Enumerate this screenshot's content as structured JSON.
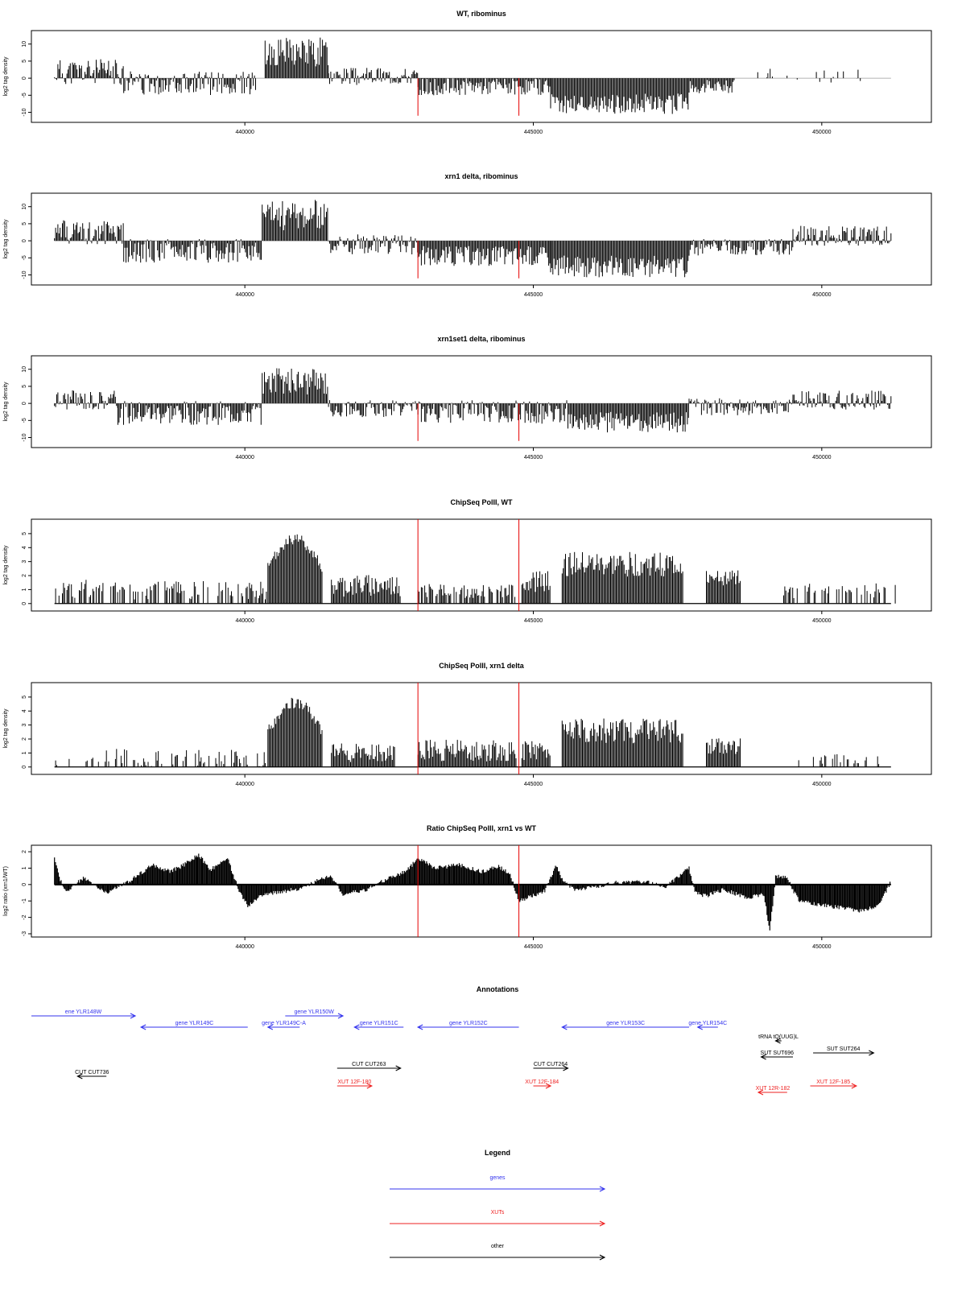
{
  "chart_data": [
    {
      "type": "bar",
      "title": "WT, ribominus",
      "ylabel": "log2 tag density",
      "xlabel": "",
      "ylim": [
        -12,
        13
      ],
      "yticks": [
        -10,
        -5,
        0,
        5,
        10
      ],
      "xlim": [
        436300,
        451900
      ],
      "xticks": [
        440000,
        445000,
        450000
      ],
      "markers": [
        443000,
        444750
      ],
      "segments": [
        {
          "start": 436700,
          "end": 437900,
          "mean": 1.8,
          "amp": 3.8,
          "seed": 11
        },
        {
          "start": 437900,
          "end": 440200,
          "mean": -1.5,
          "amp": 3.5,
          "seed": 12
        },
        {
          "start": 440350,
          "end": 441450,
          "mean": 7.5,
          "amp": 4.5,
          "seed": 13
        },
        {
          "start": 441450,
          "end": 443000,
          "mean": 0.5,
          "amp": 2.5,
          "seed": 14
        },
        {
          "start": 443000,
          "end": 445300,
          "mean": -2.5,
          "amp": 2.5,
          "seed": 15
        },
        {
          "start": 445300,
          "end": 447700,
          "mean": -7.5,
          "amp": 3.0,
          "seed": 16
        },
        {
          "start": 447700,
          "end": 448500,
          "mean": -2.5,
          "amp": 2.0,
          "seed": 17
        },
        {
          "start": 448500,
          "end": 450700,
          "mean": 0.8,
          "amp": 2.2,
          "seed": 18,
          "density": 0.15
        }
      ]
    },
    {
      "type": "bar",
      "title": "xrn1 delta, ribominus",
      "ylabel": "log2 tag density",
      "xlabel": "",
      "ylim": [
        -12,
        13
      ],
      "yticks": [
        -10,
        -5,
        0,
        5,
        10
      ],
      "xlim": [
        436300,
        451900
      ],
      "xticks": [
        440000,
        445000,
        450000
      ],
      "markers": [
        443000,
        444750
      ],
      "segments": [
        {
          "start": 436700,
          "end": 437900,
          "mean": 2.5,
          "amp": 3.5,
          "seed": 21
        },
        {
          "start": 437900,
          "end": 440300,
          "mean": -3.0,
          "amp": 3.5,
          "seed": 22
        },
        {
          "start": 440300,
          "end": 441450,
          "mean": 7.5,
          "amp": 4.5,
          "seed": 23
        },
        {
          "start": 441450,
          "end": 443000,
          "mean": -1.0,
          "amp": 3.0,
          "seed": 24
        },
        {
          "start": 443000,
          "end": 445300,
          "mean": -4.5,
          "amp": 3.0,
          "seed": 25
        },
        {
          "start": 445300,
          "end": 447700,
          "mean": -7.5,
          "amp": 3.2,
          "seed": 26
        },
        {
          "start": 447700,
          "end": 449500,
          "mean": -2.0,
          "amp": 2.5,
          "seed": 27
        },
        {
          "start": 449500,
          "end": 451200,
          "mean": 1.5,
          "amp": 3.0,
          "seed": 28
        }
      ]
    },
    {
      "type": "bar",
      "title": "xrn1set1 delta, ribominus",
      "ylabel": "log2 tag density",
      "xlabel": "",
      "ylim": [
        -12,
        13
      ],
      "yticks": [
        -10,
        -5,
        0,
        5,
        10
      ],
      "xlim": [
        436300,
        451900
      ],
      "xticks": [
        440000,
        445000,
        450000
      ],
      "markers": [
        443000,
        444750
      ],
      "segments": [
        {
          "start": 436700,
          "end": 437800,
          "mean": 1.0,
          "amp": 3.0,
          "seed": 31
        },
        {
          "start": 437800,
          "end": 440300,
          "mean": -2.8,
          "amp": 3.5,
          "seed": 32
        },
        {
          "start": 440300,
          "end": 441450,
          "mean": 6.5,
          "amp": 4.0,
          "seed": 33
        },
        {
          "start": 441450,
          "end": 443000,
          "mean": -1.5,
          "amp": 2.5,
          "seed": 34
        },
        {
          "start": 443000,
          "end": 445600,
          "mean": -2.5,
          "amp": 3.5,
          "seed": 35
        },
        {
          "start": 445600,
          "end": 447700,
          "mean": -5.5,
          "amp": 3.0,
          "seed": 36
        },
        {
          "start": 447700,
          "end": 449500,
          "mean": -1.0,
          "amp": 2.5,
          "seed": 37
        },
        {
          "start": 449500,
          "end": 451200,
          "mean": 1.0,
          "amp": 2.8,
          "seed": 38
        }
      ]
    },
    {
      "type": "bar",
      "title": "ChipSeq PolII, WT",
      "ylabel": "log2 tag density",
      "xlabel": "",
      "ylim": [
        -0.3,
        5.8
      ],
      "yticks": [
        0,
        1,
        2,
        3,
        4,
        5
      ],
      "xlim": [
        436300,
        451900
      ],
      "xticks": [
        440000,
        445000,
        450000
      ],
      "markers": [
        443000,
        444750
      ],
      "baseline": true,
      "segments": [
        {
          "start": 436700,
          "end": 440400,
          "mean": 1.0,
          "amp": 0.7,
          "seed": 41,
          "density": 0.55
        },
        {
          "start": 440400,
          "end": 441350,
          "mean": 4.6,
          "amp": 0.8,
          "seed": 42,
          "dome": true
        },
        {
          "start": 441500,
          "end": 442700,
          "mean": 1.3,
          "amp": 0.8,
          "seed": 43
        },
        {
          "start": 443000,
          "end": 444700,
          "mean": 0.9,
          "amp": 0.5,
          "seed": 44,
          "density": 0.7
        },
        {
          "start": 444800,
          "end": 445300,
          "mean": 1.6,
          "amp": 0.8,
          "seed": 45
        },
        {
          "start": 445500,
          "end": 447600,
          "mean": 2.8,
          "amp": 0.9,
          "seed": 46
        },
        {
          "start": 448000,
          "end": 448600,
          "mean": 1.8,
          "amp": 0.6,
          "seed": 47
        },
        {
          "start": 449300,
          "end": 451300,
          "mean": 0.9,
          "amp": 0.6,
          "seed": 48,
          "density": 0.35
        }
      ]
    },
    {
      "type": "bar",
      "title": "ChipSeq PolII, xrn1 delta",
      "ylabel": "log2 tag density",
      "xlabel": "",
      "ylim": [
        -0.3,
        5.8
      ],
      "yticks": [
        0,
        1,
        2,
        3,
        4,
        5
      ],
      "xlim": [
        436300,
        451900
      ],
      "xticks": [
        440000,
        445000,
        450000
      ],
      "markers": [
        443000,
        444750
      ],
      "baseline": true,
      "segments": [
        {
          "start": 436700,
          "end": 437600,
          "mean": 0.3,
          "amp": 0.4,
          "seed": 51,
          "density": 0.25
        },
        {
          "start": 437600,
          "end": 440400,
          "mean": 0.6,
          "amp": 0.7,
          "seed": 52,
          "density": 0.5
        },
        {
          "start": 440400,
          "end": 441350,
          "mean": 4.6,
          "amp": 0.8,
          "seed": 53,
          "dome": true
        },
        {
          "start": 441500,
          "end": 442600,
          "mean": 1.0,
          "amp": 0.7,
          "seed": 54
        },
        {
          "start": 443000,
          "end": 444700,
          "mean": 1.2,
          "amp": 0.8,
          "seed": 55
        },
        {
          "start": 444800,
          "end": 445300,
          "mean": 1.2,
          "amp": 0.7,
          "seed": 56
        },
        {
          "start": 445500,
          "end": 447600,
          "mean": 2.6,
          "amp": 0.9,
          "seed": 57
        },
        {
          "start": 448000,
          "end": 448600,
          "mean": 1.5,
          "amp": 0.6,
          "seed": 58
        },
        {
          "start": 449600,
          "end": 451000,
          "mean": 0.5,
          "amp": 0.5,
          "seed": 59,
          "density": 0.3
        }
      ]
    },
    {
      "type": "area",
      "title": "Ratio ChipSeq PolII, xrn1 vs WT",
      "ylabel": "log2 ratio (xrn1/WT)",
      "xlabel": "",
      "ylim": [
        -3,
        2.2
      ],
      "yticks": [
        -3,
        -2,
        -1,
        0,
        1,
        2
      ],
      "xlim": [
        436300,
        451900
      ],
      "xticks": [
        440000,
        445000,
        450000
      ],
      "markers": [
        443000,
        444750
      ],
      "x": [
        436700,
        436800,
        436900,
        437200,
        437600,
        438000,
        438400,
        438700,
        438900,
        439200,
        439400,
        439700,
        439900,
        440050,
        440300,
        440700,
        441000,
        441300,
        441500,
        441700,
        442100,
        442500,
        442800,
        443000,
        443300,
        443700,
        444100,
        444400,
        444600,
        444750,
        444900,
        445200,
        445400,
        445500,
        445700,
        446000,
        446400,
        446900,
        447300,
        447700,
        447800,
        448000,
        448300,
        448700,
        449000,
        449100,
        449200,
        449400,
        449600,
        449900,
        450300,
        450700,
        451000,
        451200
      ],
      "values": [
        1.7,
        0.3,
        -0.5,
        0.4,
        -0.5,
        0.2,
        1.2,
        0.8,
        1.1,
        1.8,
        0.9,
        1.6,
        -0.4,
        -1.3,
        -0.6,
        -0.4,
        -0.2,
        0.3,
        0.5,
        -0.6,
        -0.3,
        0.4,
        0.8,
        1.6,
        1.0,
        1.2,
        0.8,
        1.1,
        0.6,
        -1.0,
        -0.8,
        -0.4,
        1.2,
        0.3,
        -0.3,
        -0.2,
        0.1,
        0.2,
        -0.1,
        1.0,
        -0.5,
        -0.7,
        -0.3,
        -0.8,
        -0.6,
        -2.9,
        0.5,
        0.4,
        -1.0,
        -1.2,
        -1.4,
        -1.6,
        -1.2,
        0.2
      ]
    }
  ],
  "annotations": {
    "title": "Annotations",
    "items": [
      {
        "label": "ene YLR148W",
        "kind": "gene",
        "row": 0,
        "start": 436300,
        "end": 438100,
        "strand": "+"
      },
      {
        "label": "gene YLR149C",
        "kind": "gene",
        "row": 1,
        "start": 438200,
        "end": 440050,
        "strand": "-"
      },
      {
        "label": "gene YLR149C-A",
        "kind": "gene",
        "row": 1,
        "start": 440400,
        "end": 440950,
        "strand": "-"
      },
      {
        "label": "gene YLR150W",
        "kind": "gene",
        "row": 0,
        "start": 440700,
        "end": 441700,
        "strand": "+"
      },
      {
        "label": "gene YLR151C",
        "kind": "gene",
        "row": 1,
        "start": 441900,
        "end": 442750,
        "strand": "-"
      },
      {
        "label": "gene YLR152C",
        "kind": "gene",
        "row": 1,
        "start": 443000,
        "end": 444750,
        "strand": "-"
      },
      {
        "label": "gene YLR153C",
        "kind": "gene",
        "row": 1,
        "start": 445500,
        "end": 447700,
        "strand": "-"
      },
      {
        "label": "gene YLR154C",
        "kind": "gene",
        "row": 1,
        "start": 447850,
        "end": 448200,
        "strand": "-"
      },
      {
        "label": "tRNA tQ(UUG)L",
        "kind": "other",
        "row": 2,
        "start": 449200,
        "end": 449300,
        "strand": "-"
      },
      {
        "label": "SUT SUT264",
        "kind": "other",
        "row": 3,
        "start": 449850,
        "end": 450900,
        "strand": "+"
      },
      {
        "label": "SUT SUT696",
        "kind": "other",
        "row": 4,
        "start": 448950,
        "end": 449500,
        "strand": "-"
      },
      {
        "label": "CUT CUT263",
        "kind": "other",
        "row": 5,
        "start": 441600,
        "end": 442700,
        "strand": "+"
      },
      {
        "label": "CUT CUT264",
        "kind": "other",
        "row": 5,
        "start": 445000,
        "end": 445600,
        "strand": "+"
      },
      {
        "label": "CUT CUT736",
        "kind": "other",
        "row": 6,
        "start": 437100,
        "end": 437600,
        "strand": "-"
      },
      {
        "label": "XUT 12F-180",
        "kind": "xut",
        "row": 7,
        "start": 441600,
        "end": 442200,
        "strand": "+"
      },
      {
        "label": "XUT 12F-184",
        "kind": "xut",
        "row": 7,
        "start": 445000,
        "end": 445300,
        "strand": "+"
      },
      {
        "label": "XUT 12F-185",
        "kind": "xut",
        "row": 7,
        "start": 449800,
        "end": 450600,
        "strand": "+"
      },
      {
        "label": "XUT 12R-182",
        "kind": "xut",
        "row": 8,
        "start": 448900,
        "end": 449400,
        "strand": "-"
      }
    ]
  },
  "legend": {
    "title": "Legend",
    "items": [
      {
        "label": "genes",
        "kind": "gene"
      },
      {
        "label": "XUTs",
        "kind": "xut"
      },
      {
        "label": "other",
        "kind": "other"
      }
    ]
  },
  "colors": {
    "gene": "#3333ee",
    "xut": "#ee2222",
    "other": "#000000",
    "marker": "#e60000",
    "bars": "#000000",
    "axis": "#000000"
  }
}
